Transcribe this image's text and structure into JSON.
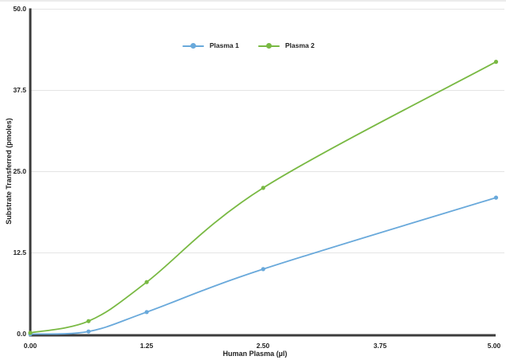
{
  "chart_data": {
    "type": "line",
    "title": "",
    "xlabel": "Human Plasma (µl)",
    "ylabel": "Substrate Transferred (pmoles)",
    "xlim": [
      0,
      5
    ],
    "ylim": [
      0,
      50
    ],
    "x_ticks": [
      "0.00",
      "1.25",
      "2.50",
      "3.75",
      "5.00"
    ],
    "x_tick_values": [
      0,
      1.25,
      2.5,
      3.75,
      5
    ],
    "y_ticks": [
      "0.0",
      "12.5",
      "25.0",
      "37.5",
      "50.0"
    ],
    "y_tick_values": [
      0,
      12.5,
      25,
      37.5,
      50
    ],
    "grid": "horizontal gridlines only",
    "line_style": "smooth",
    "marker": "circle",
    "legend_position": "top-center",
    "x": [
      0,
      0.625,
      1.25,
      2.5,
      5
    ],
    "series": [
      {
        "name": "Plasma 1",
        "color": "#69a9db",
        "values": [
          0,
          0.4,
          3.4,
          10,
          21
        ]
      },
      {
        "name": "Plasma 2",
        "color": "#79b943",
        "values": [
          0.2,
          2,
          8,
          22.5,
          41.9
        ]
      }
    ],
    "colors": {
      "axis": "#3c3c3c",
      "gridline": "#e4e4e4",
      "text": "#1f1f1f",
      "background": "#ffffff"
    }
  }
}
